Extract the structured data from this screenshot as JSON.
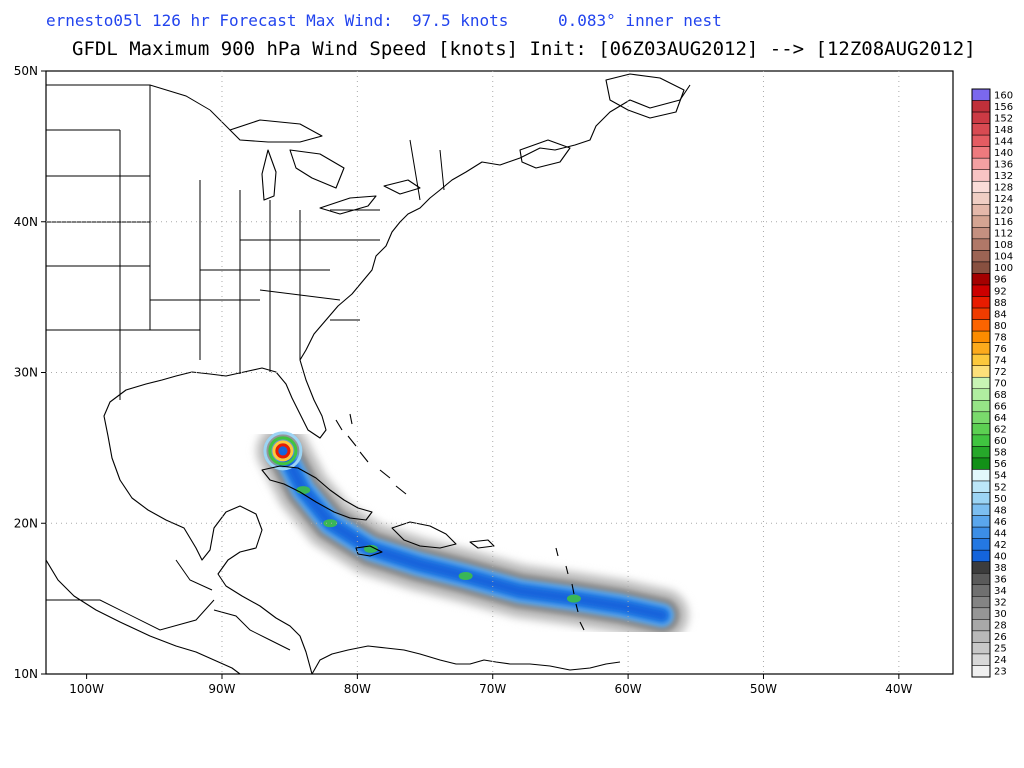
{
  "header": {
    "subtitle_left": "ernesto05l 126 hr Forecast Max Wind:  97.5 knots",
    "subtitle_right": "0.083° inner nest",
    "title": "GFDL Maximum 900 hPa Wind Speed [knots] Init: [06Z03AUG2012] --> [12Z08AUG2012]"
  },
  "map": {
    "lon_labels": [
      "100W",
      "90W",
      "80W",
      "70W",
      "60W",
      "50W",
      "40W"
    ],
    "lat_labels": [
      "10N",
      "20N",
      "30N",
      "40N",
      "50N"
    ],
    "lon_range": [
      -103,
      -36
    ],
    "lat_range": [
      10,
      50
    ],
    "grid": "dotted"
  },
  "colorbar": {
    "levels": [
      "160",
      "156",
      "152",
      "148",
      "144",
      "140",
      "136",
      "132",
      "128",
      "124",
      "120",
      "116",
      "112",
      "108",
      "104",
      "100",
      "96",
      "92",
      "88",
      "84",
      "80",
      "78",
      "76",
      "74",
      "72",
      "70",
      "68",
      "66",
      "64",
      "62",
      "60",
      "58",
      "56",
      "54",
      "52",
      "50",
      "48",
      "46",
      "44",
      "42",
      "40",
      "38",
      "36",
      "34",
      "32",
      "30",
      "28",
      "26",
      "25",
      "24",
      "23"
    ],
    "colors": [
      "#7b68ee",
      "#c0303a",
      "#cc3a44",
      "#d84a52",
      "#e45c62",
      "#ee7a7e",
      "#f4a0a2",
      "#f8c4c4",
      "#fadcd8",
      "#f0cec4",
      "#e4b8aa",
      "#d4a492",
      "#c49080",
      "#b07868",
      "#9c6454",
      "#885040",
      "#a40000",
      "#cc0000",
      "#e81c00",
      "#f03c00",
      "#fc6400",
      "#fc8c00",
      "#fcaa1c",
      "#fcc83c",
      "#fce07a",
      "#c8f4b4",
      "#b0eea0",
      "#96e486",
      "#7ada6c",
      "#5cd052",
      "#40c440",
      "#26a82a",
      "#129018",
      "#e2f8fc",
      "#bce6f8",
      "#9cd4f4",
      "#7cbef0",
      "#5aa6ec",
      "#3c8ee6",
      "#2478e2",
      "#1464dc",
      "#3c3c3c",
      "#5a5a5a",
      "#707070",
      "#848484",
      "#969696",
      "#a8a8a8",
      "#b8b8b8",
      "#c8c8c8",
      "#d8d8d8",
      "#f0f0f0"
    ]
  },
  "track": {
    "max_wind_knots": 97.5,
    "points": [
      {
        "lon": -57.5,
        "lat": 13.9
      },
      {
        "lon": -60.5,
        "lat": 14.5
      },
      {
        "lon": -64.0,
        "lat": 15.0
      },
      {
        "lon": -68.0,
        "lat": 15.5
      },
      {
        "lon": -72.0,
        "lat": 16.5
      },
      {
        "lon": -75.5,
        "lat": 17.3
      },
      {
        "lon": -79.0,
        "lat": 18.3
      },
      {
        "lon": -82.0,
        "lat": 20.0
      },
      {
        "lon": -84.0,
        "lat": 22.2
      },
      {
        "lon": -85.5,
        "lat": 24.8
      }
    ]
  }
}
